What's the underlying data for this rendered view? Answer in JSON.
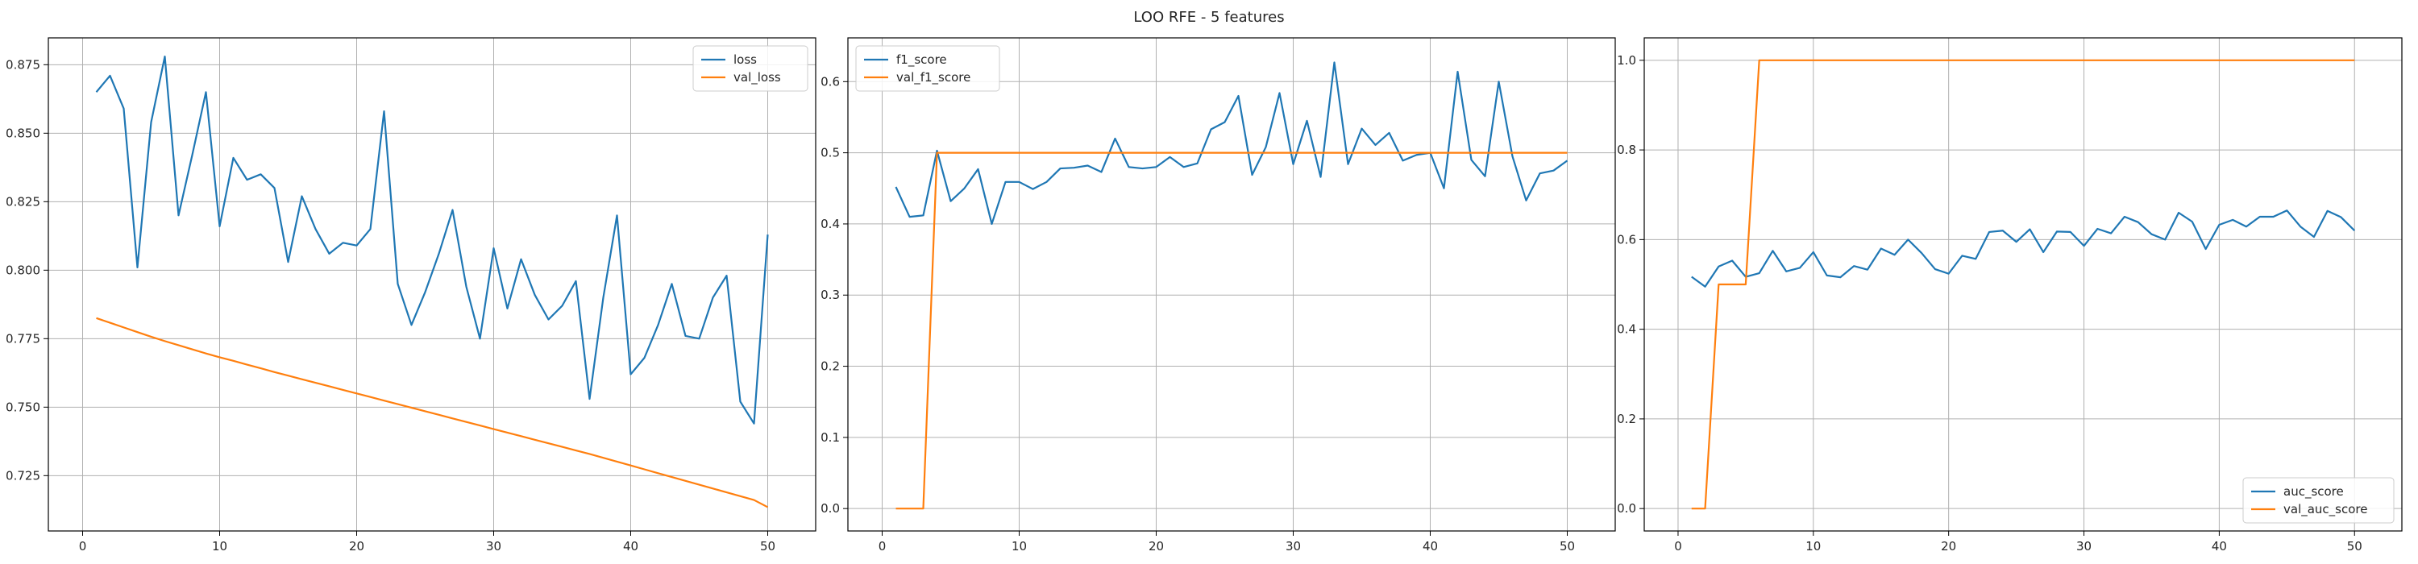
{
  "figure": {
    "suptitle": "LOO RFE - 5 features"
  },
  "chart_data": [
    {
      "type": "line",
      "legend_position": "upper right",
      "grid": true,
      "xlim": [
        -2.5,
        53.5
      ],
      "ylim": [
        0.7048,
        0.8848
      ],
      "xticks": [
        0,
        10,
        20,
        30,
        40,
        50
      ],
      "yticks": [
        0.725,
        0.75,
        0.775,
        0.8,
        0.825,
        0.85,
        0.875
      ],
      "xtick_labels": [
        "0",
        "10",
        "20",
        "30",
        "40",
        "50"
      ],
      "ytick_labels": [
        "0.725",
        "0.750",
        "0.775",
        "0.800",
        "0.825",
        "0.850",
        "0.875"
      ],
      "x": [
        1,
        2,
        3,
        4,
        5,
        6,
        7,
        8,
        9,
        10,
        11,
        12,
        13,
        14,
        15,
        16,
        17,
        18,
        19,
        20,
        21,
        22,
        23,
        24,
        25,
        26,
        27,
        28,
        29,
        30,
        31,
        32,
        33,
        34,
        35,
        36,
        37,
        38,
        39,
        40,
        41,
        42,
        43,
        44,
        45,
        46,
        47,
        48,
        49,
        50
      ],
      "series": [
        {
          "name": "loss",
          "color": "#1f77b4",
          "values": [
            0.865,
            0.871,
            0.859,
            0.801,
            0.854,
            0.878,
            0.82,
            0.842,
            0.865,
            0.816,
            0.841,
            0.833,
            0.835,
            0.83,
            0.803,
            0.827,
            0.815,
            0.806,
            0.81,
            0.809,
            0.815,
            0.858,
            0.795,
            0.78,
            0.792,
            0.806,
            0.822,
            0.794,
            0.775,
            0.808,
            0.786,
            0.804,
            0.791,
            0.782,
            0.787,
            0.796,
            0.753,
            0.79,
            0.82,
            0.762,
            0.768,
            0.78,
            0.795,
            0.776,
            0.775,
            0.79,
            0.798,
            0.752,
            0.744,
            0.813
          ]
        },
        {
          "name": "val_loss",
          "color": "#ff7f0e",
          "values": [
            0.7825,
            0.7808,
            0.7791,
            0.7774,
            0.7757,
            0.7741,
            0.7726,
            0.7711,
            0.7696,
            0.7682,
            0.7669,
            0.7655,
            0.7642,
            0.7628,
            0.7615,
            0.7602,
            0.7589,
            0.7576,
            0.7563,
            0.755,
            0.7537,
            0.7524,
            0.7511,
            0.7498,
            0.7485,
            0.7472,
            0.7459,
            0.7446,
            0.7433,
            0.742,
            0.7407,
            0.7394,
            0.7381,
            0.7368,
            0.7355,
            0.7342,
            0.7329,
            0.7315,
            0.7301,
            0.7287,
            0.7273,
            0.7259,
            0.7245,
            0.7231,
            0.7217,
            0.7203,
            0.7189,
            0.7175,
            0.7161,
            0.7135
          ]
        }
      ]
    },
    {
      "type": "line",
      "legend_position": "upper left",
      "grid": true,
      "xlim": [
        -2.5,
        53.5
      ],
      "ylim": [
        -0.0315,
        0.6615
      ],
      "xticks": [
        0,
        10,
        20,
        30,
        40,
        50
      ],
      "yticks": [
        0.0,
        0.1,
        0.2,
        0.3,
        0.4,
        0.5,
        0.6
      ],
      "xtick_labels": [
        "0",
        "10",
        "20",
        "30",
        "40",
        "50"
      ],
      "ytick_labels": [
        "0.0",
        "0.1",
        "0.2",
        "0.3",
        "0.4",
        "0.5",
        "0.6"
      ],
      "x": [
        1,
        2,
        3,
        4,
        5,
        6,
        7,
        8,
        9,
        10,
        11,
        12,
        13,
        14,
        15,
        16,
        17,
        18,
        19,
        20,
        21,
        22,
        23,
        24,
        25,
        26,
        27,
        28,
        29,
        30,
        31,
        32,
        33,
        34,
        35,
        36,
        37,
        38,
        39,
        40,
        41,
        42,
        43,
        44,
        45,
        46,
        47,
        48,
        49,
        50
      ],
      "series": [
        {
          "name": "f1_score",
          "color": "#1f77b4",
          "values": [
            0.452,
            0.41,
            0.412,
            0.503,
            0.432,
            0.45,
            0.477,
            0.4,
            0.459,
            0.459,
            0.449,
            0.459,
            0.478,
            0.479,
            0.482,
            0.473,
            0.52,
            0.48,
            0.478,
            0.48,
            0.494,
            0.48,
            0.485,
            0.533,
            0.543,
            0.58,
            0.469,
            0.508,
            0.584,
            0.484,
            0.545,
            0.466,
            0.627,
            0.484,
            0.534,
            0.511,
            0.528,
            0.489,
            0.497,
            0.5,
            0.45,
            0.614,
            0.49,
            0.467,
            0.6,
            0.495,
            0.433,
            0.471,
            0.475,
            0.489
          ]
        },
        {
          "name": "val_f1_score",
          "color": "#ff7f0e",
          "values": [
            0.0,
            0.0,
            0.0,
            0.5,
            0.5,
            0.5,
            0.5,
            0.5,
            0.5,
            0.5,
            0.5,
            0.5,
            0.5,
            0.5,
            0.5,
            0.5,
            0.5,
            0.5,
            0.5,
            0.5,
            0.5,
            0.5,
            0.5,
            0.5,
            0.5,
            0.5,
            0.5,
            0.5,
            0.5,
            0.5,
            0.5,
            0.5,
            0.5,
            0.5,
            0.5,
            0.5,
            0.5,
            0.5,
            0.5,
            0.5,
            0.5,
            0.5,
            0.5,
            0.5,
            0.5,
            0.5,
            0.5,
            0.5,
            0.5,
            0.5
          ]
        }
      ]
    },
    {
      "type": "line",
      "legend_position": "lower right",
      "grid": true,
      "xlim": [
        -2.5,
        53.5
      ],
      "ylim": [
        -0.05,
        1.05
      ],
      "xticks": [
        0,
        10,
        20,
        30,
        40,
        50
      ],
      "yticks": [
        0.0,
        0.2,
        0.4,
        0.6,
        0.8,
        1.0
      ],
      "xtick_labels": [
        "0",
        "10",
        "20",
        "30",
        "40",
        "50"
      ],
      "ytick_labels": [
        "0.0",
        "0.2",
        "0.4",
        "0.6",
        "0.8",
        "1.0"
      ],
      "x": [
        1,
        2,
        3,
        4,
        5,
        6,
        7,
        8,
        9,
        10,
        11,
        12,
        13,
        14,
        15,
        16,
        17,
        18,
        19,
        20,
        21,
        22,
        23,
        24,
        25,
        26,
        27,
        28,
        29,
        30,
        31,
        32,
        33,
        34,
        35,
        36,
        37,
        38,
        39,
        40,
        41,
        42,
        43,
        44,
        45,
        46,
        47,
        48,
        49,
        50
      ],
      "series": [
        {
          "name": "auc_score",
          "color": "#1f77b4",
          "values": [
            0.517,
            0.495,
            0.54,
            0.553,
            0.517,
            0.525,
            0.575,
            0.529,
            0.537,
            0.572,
            0.52,
            0.516,
            0.541,
            0.533,
            0.58,
            0.566,
            0.6,
            0.57,
            0.534,
            0.524,
            0.564,
            0.557,
            0.617,
            0.62,
            0.595,
            0.623,
            0.572,
            0.618,
            0.617,
            0.586,
            0.624,
            0.614,
            0.651,
            0.639,
            0.612,
            0.6,
            0.66,
            0.64,
            0.579,
            0.633,
            0.644,
            0.629,
            0.651,
            0.651,
            0.665,
            0.629,
            0.606,
            0.664,
            0.65,
            0.62
          ]
        },
        {
          "name": "val_auc_score",
          "color": "#ff7f0e",
          "values": [
            0.0,
            0.0,
            0.5,
            0.5,
            0.5,
            1.0,
            1.0,
            1.0,
            1.0,
            1.0,
            1.0,
            1.0,
            1.0,
            1.0,
            1.0,
            1.0,
            1.0,
            1.0,
            1.0,
            1.0,
            1.0,
            1.0,
            1.0,
            1.0,
            1.0,
            1.0,
            1.0,
            1.0,
            1.0,
            1.0,
            1.0,
            1.0,
            1.0,
            1.0,
            1.0,
            1.0,
            1.0,
            1.0,
            1.0,
            1.0,
            1.0,
            1.0,
            1.0,
            1.0,
            1.0,
            1.0,
            1.0,
            1.0,
            1.0,
            1.0
          ]
        }
      ]
    }
  ]
}
